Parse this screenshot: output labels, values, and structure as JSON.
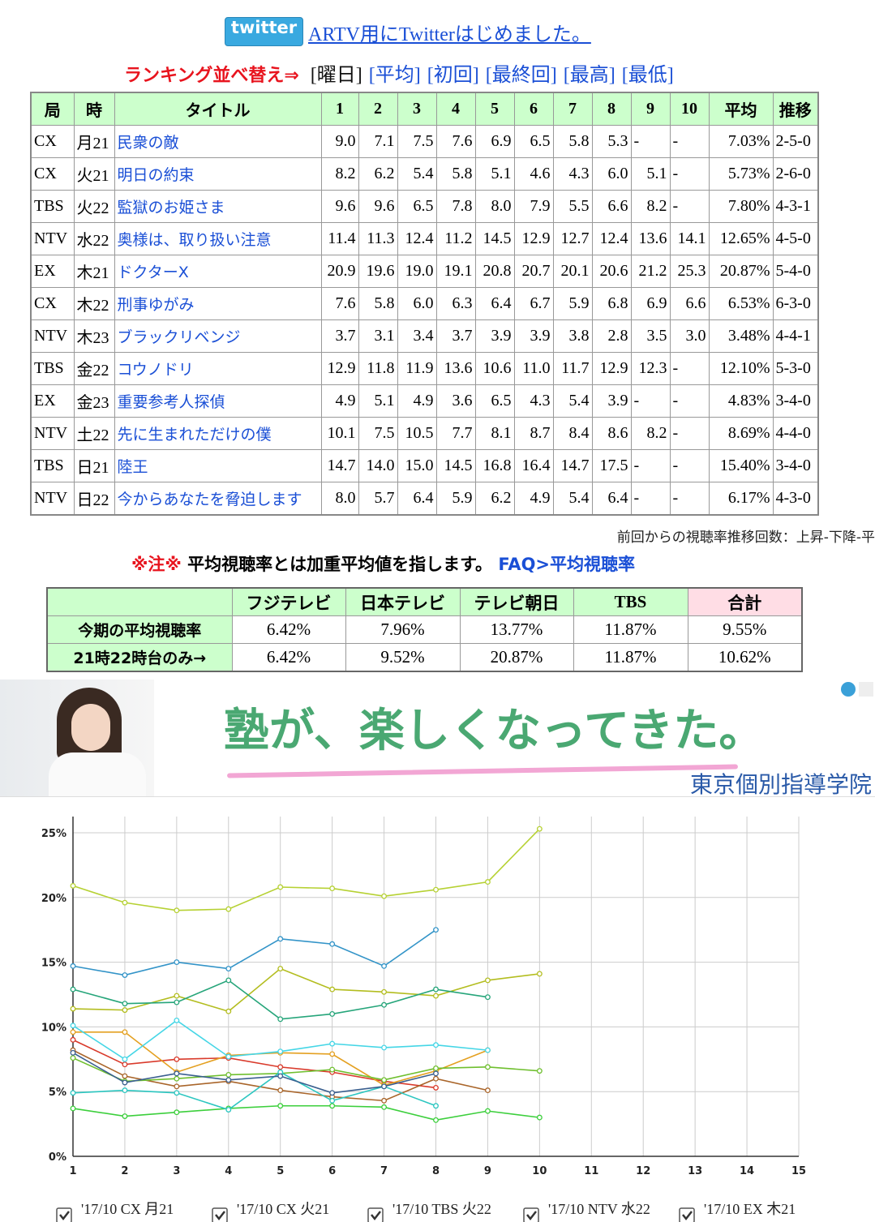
{
  "header": {
    "twitter_logo": "twitter",
    "twitter_link": "ARTV用にTwitterはじめました。"
  },
  "sort": {
    "label": "ランキング並べ替え⇒",
    "links": [
      "[曜日]",
      "[平均]",
      "[初回]",
      "[最終回]",
      "[最高]",
      "[最低]"
    ]
  },
  "table": {
    "header": [
      "局",
      "時",
      "タイトル",
      "1",
      "2",
      "3",
      "4",
      "5",
      "6",
      "7",
      "8",
      "9",
      "10",
      "平均",
      "推移"
    ],
    "rows": [
      [
        "CX",
        "月21",
        "民衆の敵",
        "9.0",
        "7.1",
        "7.5",
        "7.6",
        "6.9",
        "6.5",
        "5.8",
        "5.3",
        "-",
        "-",
        "7.03%",
        "2-5-0"
      ],
      [
        "CX",
        "火21",
        "明日の約束",
        "8.2",
        "6.2",
        "5.4",
        "5.8",
        "5.1",
        "4.6",
        "4.3",
        "6.0",
        "5.1",
        "-",
        "5.73%",
        "2-6-0"
      ],
      [
        "TBS",
        "火22",
        "監獄のお姫さま",
        "9.6",
        "9.6",
        "6.5",
        "7.8",
        "8.0",
        "7.9",
        "5.5",
        "6.6",
        "8.2",
        "-",
        "7.80%",
        "4-3-1"
      ],
      [
        "NTV",
        "水22",
        "奥様は、取り扱い注意",
        "11.4",
        "11.3",
        "12.4",
        "11.2",
        "14.5",
        "12.9",
        "12.7",
        "12.4",
        "13.6",
        "14.1",
        "12.65%",
        "4-5-0"
      ],
      [
        "EX",
        "木21",
        "ドクターX",
        "20.9",
        "19.6",
        "19.0",
        "19.1",
        "20.8",
        "20.7",
        "20.1",
        "20.6",
        "21.2",
        "25.3",
        "20.87%",
        "5-4-0"
      ],
      [
        "CX",
        "木22",
        "刑事ゆがみ",
        "7.6",
        "5.8",
        "6.0",
        "6.3",
        "6.4",
        "6.7",
        "5.9",
        "6.8",
        "6.9",
        "6.6",
        "6.53%",
        "6-3-0"
      ],
      [
        "NTV",
        "木23",
        "ブラックリベンジ",
        "3.7",
        "3.1",
        "3.4",
        "3.7",
        "3.9",
        "3.9",
        "3.8",
        "2.8",
        "3.5",
        "3.0",
        "3.48%",
        "4-4-1"
      ],
      [
        "TBS",
        "金22",
        "コウノドリ",
        "12.9",
        "11.8",
        "11.9",
        "13.6",
        "10.6",
        "11.0",
        "11.7",
        "12.9",
        "12.3",
        "-",
        "12.10%",
        "5-3-0"
      ],
      [
        "EX",
        "金23",
        "重要参考人探偵",
        "4.9",
        "5.1",
        "4.9",
        "3.6",
        "6.5",
        "4.3",
        "5.4",
        "3.9",
        "-",
        "-",
        "4.83%",
        "3-4-0"
      ],
      [
        "NTV",
        "土22",
        "先に生まれただけの僕",
        "10.1",
        "7.5",
        "10.5",
        "7.7",
        "8.1",
        "8.7",
        "8.4",
        "8.6",
        "8.2",
        "-",
        "8.69%",
        "4-4-0"
      ],
      [
        "TBS",
        "日21",
        "陸王",
        "14.7",
        "14.0",
        "15.0",
        "14.5",
        "16.8",
        "16.4",
        "14.7",
        "17.5",
        "-",
        "-",
        "15.40%",
        "3-4-0"
      ],
      [
        "NTV",
        "日22",
        "今からあなたを脅迫します",
        "8.0",
        "5.7",
        "6.4",
        "5.9",
        "6.2",
        "4.9",
        "5.4",
        "6.4",
        "-",
        "-",
        "6.17%",
        "4-3-0"
      ]
    ]
  },
  "footnote": "前回からの視聴率推移回数：上昇-下降-平",
  "note": {
    "mark": "※注※",
    "text": "平均視聴率とは加重平均値を指します。",
    "link": "FAQ>平均視聴率"
  },
  "summary": {
    "header": [
      "フジテレビ",
      "日本テレビ",
      "テレビ朝日",
      "TBS",
      "合計"
    ],
    "rows": [
      {
        "label": "今期の平均視聴率",
        "values": [
          "6.42%",
          "7.96%",
          "13.77%",
          "11.87%",
          "9.55%"
        ]
      },
      {
        "label": "21時22時台のみ→",
        "values": [
          "6.42%",
          "9.52%",
          "20.87%",
          "11.87%",
          "10.62%"
        ]
      }
    ]
  },
  "ad": {
    "headline": "塾が、楽しくなってきた。",
    "sponsor": "東京個別指導学院"
  },
  "chart_data": {
    "type": "line",
    "x": [
      1,
      2,
      3,
      4,
      5,
      6,
      7,
      8,
      9,
      10
    ],
    "xlim": [
      1,
      15
    ],
    "xticks": [
      1,
      2,
      3,
      4,
      5,
      6,
      7,
      8,
      9,
      10,
      11,
      12,
      13,
      14,
      15
    ],
    "ylim": [
      0,
      26.25
    ],
    "yticks": [
      {
        "value": 0,
        "label": "0%"
      },
      {
        "value": 5,
        "label": "5%"
      },
      {
        "value": 10,
        "label": "10%"
      },
      {
        "value": 15,
        "label": "15%"
      },
      {
        "value": 20,
        "label": "20%"
      },
      {
        "value": 25,
        "label": "25%"
      }
    ],
    "grid": true,
    "series": [
      {
        "name": "'17/10 CX 月21",
        "color": "#d93a2b",
        "values": [
          9.0,
          7.1,
          7.5,
          7.6,
          6.9,
          6.5,
          5.8,
          5.3,
          null,
          null
        ]
      },
      {
        "name": "'17/10 CX 火21",
        "color": "#a9652a",
        "values": [
          8.2,
          6.2,
          5.4,
          5.8,
          5.1,
          4.6,
          4.3,
          6.0,
          5.1,
          null
        ]
      },
      {
        "name": "'17/10 TBS 火22",
        "color": "#e4a020",
        "values": [
          9.6,
          9.6,
          6.5,
          7.8,
          8.0,
          7.9,
          5.5,
          6.6,
          8.2,
          null
        ]
      },
      {
        "name": "'17/10 NTV 水22",
        "color": "#b3bd1f",
        "values": [
          11.4,
          11.3,
          12.4,
          11.2,
          14.5,
          12.9,
          12.7,
          12.4,
          13.6,
          14.1
        ]
      },
      {
        "name": "'17/10 EX 木21",
        "color": "#b6d133",
        "values": [
          20.9,
          19.6,
          19.0,
          19.1,
          20.8,
          20.7,
          20.1,
          20.6,
          21.2,
          25.3
        ]
      },
      {
        "color": "#6fbf2f",
        "values": [
          7.6,
          5.8,
          6.0,
          6.3,
          6.4,
          6.7,
          5.9,
          6.8,
          6.9,
          6.6
        ]
      },
      {
        "color": "#3ccf3c",
        "values": [
          3.7,
          3.1,
          3.4,
          3.7,
          3.9,
          3.9,
          3.8,
          2.8,
          3.5,
          3.0
        ]
      },
      {
        "color": "#26a57a",
        "values": [
          12.9,
          11.8,
          11.9,
          13.6,
          10.6,
          11.0,
          11.7,
          12.9,
          12.3,
          null
        ]
      },
      {
        "color": "#2cc6c0",
        "values": [
          4.9,
          5.1,
          4.9,
          3.6,
          6.5,
          4.3,
          5.4,
          3.9,
          null,
          null
        ]
      },
      {
        "color": "#45d6e6",
        "values": [
          10.1,
          7.5,
          10.5,
          7.7,
          8.1,
          8.7,
          8.4,
          8.6,
          8.2,
          null
        ]
      },
      {
        "color": "#3394c8",
        "values": [
          14.7,
          14.0,
          15.0,
          14.5,
          16.8,
          16.4,
          14.7,
          17.5,
          null,
          null
        ]
      },
      {
        "color": "#3a5f8f",
        "values": [
          8.0,
          5.7,
          6.4,
          5.9,
          6.2,
          4.9,
          5.4,
          6.4,
          null,
          null
        ]
      }
    ]
  }
}
